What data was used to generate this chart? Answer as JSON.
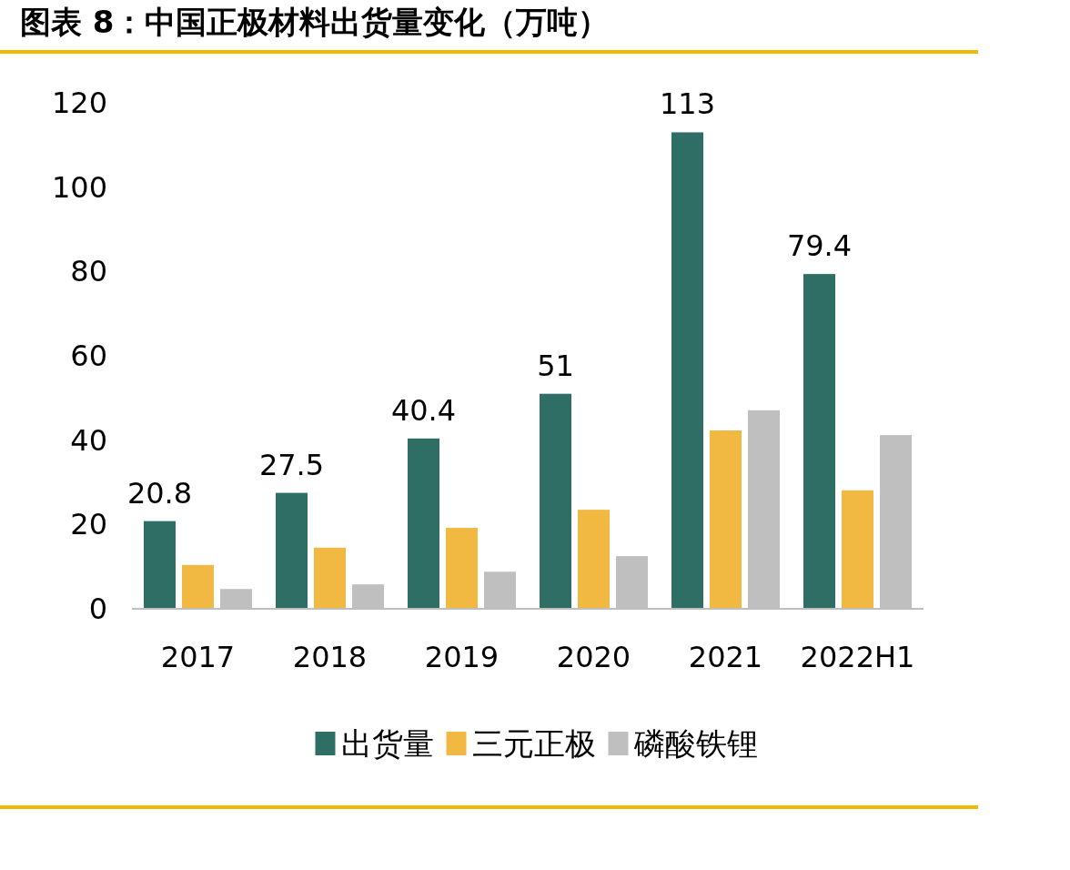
{
  "chart_data": {
    "type": "bar",
    "title": "图表 8：中国正极材料出货量变化（万吨）",
    "categories": [
      "2017",
      "2018",
      "2019",
      "2020",
      "2021",
      "2022H1"
    ],
    "series": [
      {
        "name": "出货量",
        "color": "#2e6e65",
        "values": [
          20.8,
          27.5,
          40.4,
          51,
          113,
          79.4
        ],
        "value_labels": [
          "20.8",
          "27.5",
          "40.4",
          "51",
          "113",
          "79.4"
        ]
      },
      {
        "name": "三元正极",
        "color": "#f2b942",
        "values": [
          10.4,
          14.5,
          19.2,
          23.5,
          42.3,
          28.1
        ]
      },
      {
        "name": "磷酸铁锂",
        "color": "#bfbfbf",
        "values": [
          4.7,
          5.8,
          8.8,
          12.5,
          47.1,
          41.2
        ]
      }
    ],
    "ylim": [
      0,
      120
    ],
    "yticks": [
      0,
      20,
      40,
      60,
      80,
      100,
      120
    ],
    "grid": false,
    "legend": "bottom"
  }
}
